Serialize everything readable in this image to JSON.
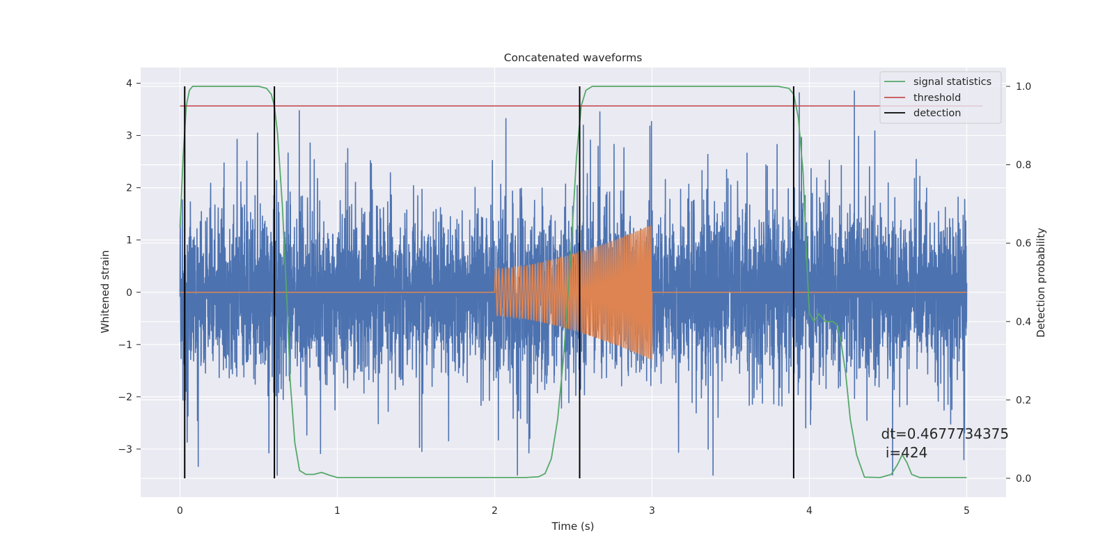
{
  "chart_data": {
    "type": "line",
    "title": "Concatenated waveforms",
    "xlabel": "Time (s)",
    "ylabel": "Whitened strain",
    "y2label": "Detection probability",
    "xlim": [
      -0.25,
      5.25
    ],
    "ylim": [
      -3.92,
      4.3
    ],
    "y2lim": [
      -0.048,
      1.048
    ],
    "x_ticks": [
      0,
      1,
      2,
      3,
      4,
      5
    ],
    "x_tick_labels": [
      "0",
      "1",
      "2",
      "3",
      "4",
      "5"
    ],
    "y_ticks": [
      -3,
      -2,
      -1,
      0,
      1,
      2,
      3,
      4
    ],
    "y_tick_labels": [
      "−3",
      "−2",
      "−1",
      "0",
      "1",
      "2",
      "3",
      "4"
    ],
    "y2_ticks": [
      0.0,
      0.2,
      0.4,
      0.6,
      0.8,
      1.0
    ],
    "y2_tick_labels": [
      "0.0",
      "0.2",
      "0.4",
      "0.6",
      "0.8",
      "1.0"
    ],
    "grid": true,
    "legend_position": "top-right",
    "series": [
      {
        "name": "",
        "kind": "noise",
        "color": "#4c72b0",
        "x_range": [
          0,
          5
        ],
        "typical_amplitude": [
          -1.0,
          1.0
        ],
        "peak_range": [
          -3.5,
          3.95
        ]
      },
      {
        "name": "",
        "kind": "chirp",
        "color": "#dd8452",
        "x_range": [
          0,
          5
        ],
        "baseline": 0,
        "chirp_start": 2.0,
        "chirp_end": 3.0,
        "amplitude_start": 0.45,
        "amplitude_end": 1.3
      },
      {
        "name": "signal statistics",
        "color": "#55a868",
        "axis": "right",
        "x": [
          0.0,
          0.02,
          0.04,
          0.06,
          0.08,
          0.1,
          0.15,
          0.3,
          0.5,
          0.55,
          0.58,
          0.6,
          0.62,
          0.65,
          0.68,
          0.7,
          0.73,
          0.76,
          0.8,
          0.85,
          0.9,
          0.95,
          1.0,
          1.5,
          2.0,
          2.2,
          2.28,
          2.32,
          2.36,
          2.4,
          2.44,
          2.48,
          2.52,
          2.55,
          2.58,
          2.62,
          2.7,
          3.0,
          3.5,
          3.8,
          3.87,
          3.9,
          3.93,
          3.96,
          3.98,
          4.0,
          4.03,
          4.06,
          4.1,
          4.15,
          4.18,
          4.2,
          4.23,
          4.26,
          4.3,
          4.35,
          4.45,
          4.52,
          4.56,
          4.59,
          4.62,
          4.65,
          4.7,
          4.8,
          5.0
        ],
        "y": [
          0.64,
          0.82,
          0.95,
          0.99,
          1.0,
          1.0,
          1.0,
          1.0,
          1.0,
          0.995,
          0.98,
          0.95,
          0.88,
          0.7,
          0.45,
          0.25,
          0.09,
          0.02,
          0.01,
          0.01,
          0.015,
          0.008,
          0.002,
          0.002,
          0.002,
          0.002,
          0.004,
          0.012,
          0.05,
          0.15,
          0.32,
          0.55,
          0.82,
          0.95,
          0.99,
          1.0,
          1.0,
          1.0,
          1.0,
          1.0,
          0.995,
          0.98,
          0.92,
          0.78,
          0.58,
          0.42,
          0.4,
          0.42,
          0.4,
          0.4,
          0.39,
          0.35,
          0.27,
          0.15,
          0.06,
          0.003,
          0.002,
          0.01,
          0.035,
          0.06,
          0.04,
          0.01,
          0.002,
          0.002,
          0.002
        ]
      },
      {
        "name": "threshold",
        "color": "#c44e52",
        "axis": "right",
        "x": [
          0,
          5.1
        ],
        "y": [
          0.95,
          0.95
        ]
      },
      {
        "name": "detection",
        "color": "#000000",
        "axis": "right",
        "kind": "vlines",
        "x": [
          0.03,
          0.6,
          2.54,
          3.9
        ],
        "y_range": [
          0.0,
          1.0
        ]
      }
    ],
    "legend": [
      "signal statistics",
      "threshold",
      "detection"
    ],
    "annotation": {
      "text_line1": "dt=0.4677734375",
      "text_line2": " i=424",
      "x": 4.5,
      "y": -2.75
    }
  }
}
